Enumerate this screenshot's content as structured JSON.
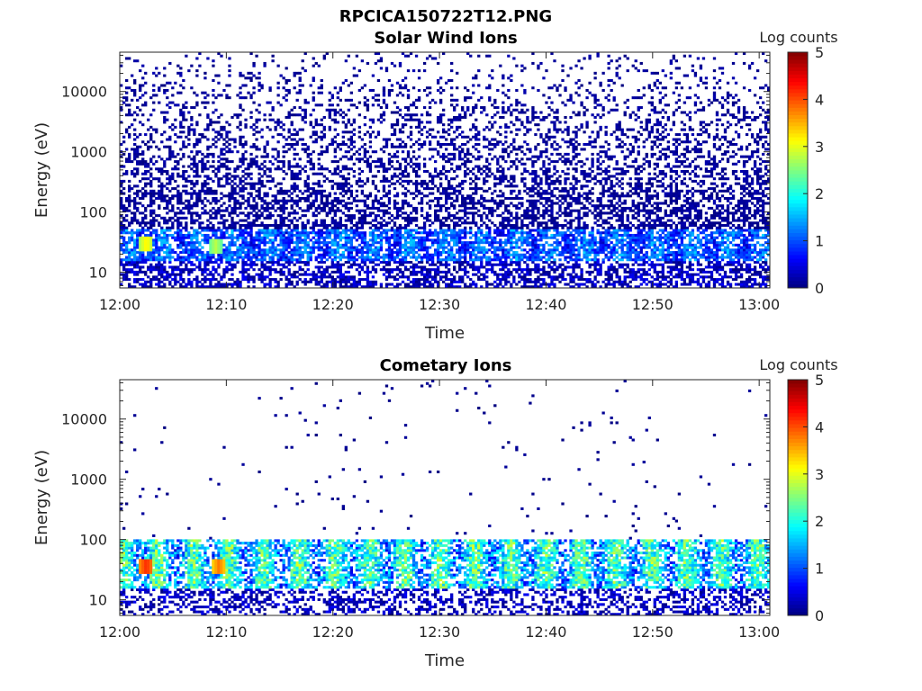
{
  "figure": {
    "filename_title": "RPCICA150722T12.PNG"
  },
  "chart_data": [
    {
      "type": "heatmap",
      "title": "Solar Wind Ions",
      "xlabel": "Time",
      "ylabel": "Energy (eV)",
      "x_ticks": [
        "12:00",
        "12:10",
        "12:20",
        "12:30",
        "12:40",
        "12:50",
        "13:00"
      ],
      "x_range_minutes": [
        0,
        61
      ],
      "y_scale": "log",
      "y_ticks": [
        10,
        100,
        1000,
        10000
      ],
      "y_tick_labels": [
        "10",
        "100",
        "1000",
        "10000"
      ],
      "y_range_eV": [
        5.5,
        45000
      ],
      "colorbar": {
        "label": "Log counts",
        "range": [
          0,
          5
        ],
        "ticks": [
          "0",
          "1",
          "2",
          "3",
          "4",
          "5"
        ],
        "colormap": "jet"
      },
      "features": {
        "background_density": "dense",
        "band_energy_eV": [
          15,
          50
        ],
        "hotspots": [
          {
            "time_min": 2.5,
            "energy_eV": 30,
            "log_counts": 3.2
          },
          {
            "time_min": 9.0,
            "energy_eV": 28,
            "log_counts": 2.8
          }
        ]
      }
    },
    {
      "type": "heatmap",
      "title": "Cometary Ions",
      "xlabel": "Time",
      "ylabel": "Energy (eV)",
      "x_ticks": [
        "12:00",
        "12:10",
        "12:20",
        "12:30",
        "12:40",
        "12:50",
        "13:00"
      ],
      "x_range_minutes": [
        0,
        61
      ],
      "y_scale": "log",
      "y_ticks": [
        10,
        100,
        1000,
        10000
      ],
      "y_tick_labels": [
        "10",
        "100",
        "1000",
        "10000"
      ],
      "y_range_eV": [
        5.5,
        45000
      ],
      "colorbar": {
        "label": "Log counts",
        "range": [
          0,
          5
        ],
        "ticks": [
          "0",
          "1",
          "2",
          "3",
          "4",
          "5"
        ],
        "colormap": "jet"
      },
      "features": {
        "background_density": "sparse",
        "band_energy_eV": [
          15,
          100
        ],
        "hotspots": [
          {
            "time_min": 2.5,
            "energy_eV": 35,
            "log_counts": 4.2
          },
          {
            "time_min": 9.3,
            "energy_eV": 35,
            "log_counts": 3.8
          }
        ]
      }
    }
  ]
}
